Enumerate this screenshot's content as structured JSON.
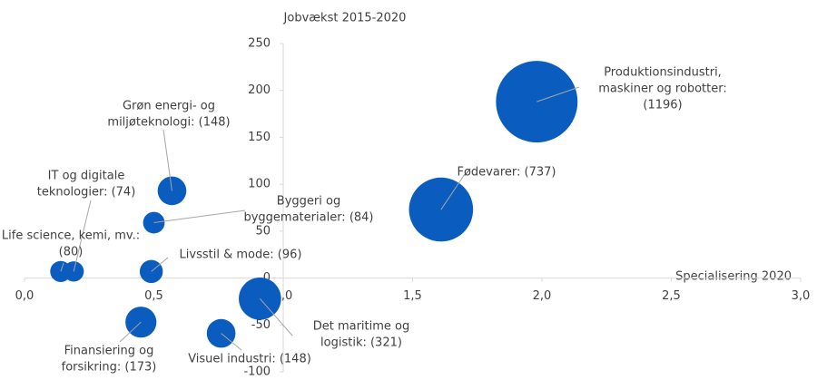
{
  "chart_data": {
    "type": "bubble",
    "ylabel": "Jobvækst 2015-2020",
    "xlabel": "Specialisering 2020",
    "xlim": [
      0,
      3
    ],
    "xticks": [
      {
        "value": 0,
        "label": "0,0"
      },
      {
        "value": 0.5,
        "label": "0,5"
      },
      {
        "value": 1,
        "label": "1,0"
      },
      {
        "value": 1.5,
        "label": "1,5"
      },
      {
        "value": 2,
        "label": "2,0"
      },
      {
        "value": 2.5,
        "label": "2,5"
      },
      {
        "value": 3,
        "label": "3,0"
      }
    ],
    "ylim": [
      -100,
      250
    ],
    "yticks": [
      -100,
      -50,
      0,
      50,
      100,
      150,
      200,
      250
    ],
    "x_axis_crosses_at": 0,
    "y_axis_crosses_at": 1,
    "color": "#0b5cbf",
    "x": [
      1.98,
      1.61,
      0.57,
      0.5,
      0.19,
      0.14,
      0.49,
      0.91,
      0.45,
      0.76
    ],
    "values": [
      188,
      73,
      93,
      59,
      7,
      7,
      7,
      -22,
      -47,
      -59
    ],
    "sizes": [
      1196,
      737,
      148,
      84,
      74,
      80,
      96,
      321,
      173,
      148
    ],
    "labels": [
      [
        "Produktionsindustri,",
        "maskiner og robotter:",
        "(1196)"
      ],
      [
        "Fødevarer: (737)"
      ],
      [
        "Grøn energi- og",
        "miljøteknologi: (148)"
      ],
      [
        "Byggeri og",
        "byggematerialer: (84)"
      ],
      [
        "IT og digitale",
        "teknologier: (74)"
      ],
      [
        "Life science, kemi, mv.:",
        "(80)"
      ],
      [
        "Livsstil & mode: (96)"
      ],
      [
        "Det maritime og",
        "logistik: (321)"
      ],
      [
        "Finansiering og",
        "forsikring: (173)"
      ],
      [
        "Visuel industri: (148)"
      ]
    ]
  }
}
